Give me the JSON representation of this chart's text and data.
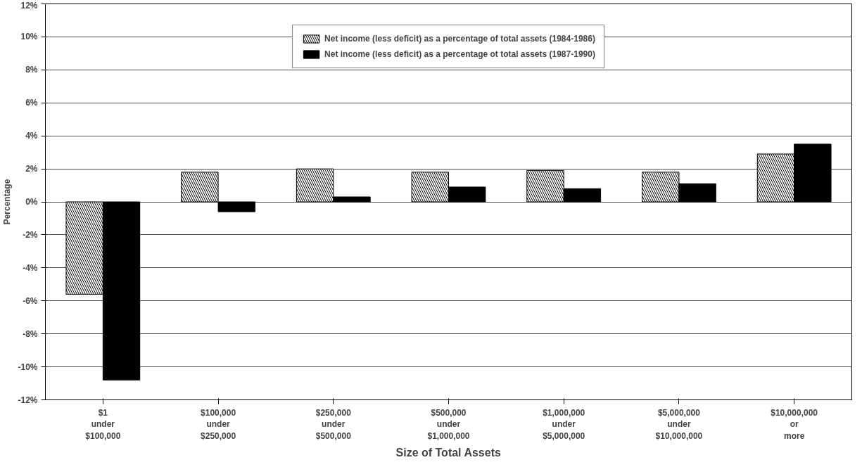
{
  "chart_data": {
    "type": "bar",
    "xlabel": "Size of Total Assets",
    "ylabel": "Percentage",
    "categories": [
      "$1\nunder\n$100,000",
      "$100,000\nunder\n$250,000",
      "$250,000\nunder\n$500,000",
      "$500,000\nunder\n$1,000,000",
      "$1,000,000\nunder\n$5,000,000",
      "$5,000,000\nunder\n$10,000,000",
      "$10,000,000\nor\nmore"
    ],
    "series": [
      {
        "name": "Net income (less deficit) as a percentage of total assets (1984-1986)",
        "color": "#ffffff",
        "values": [
          -5.6,
          1.8,
          2.0,
          1.8,
          1.9,
          1.8,
          2.9
        ]
      },
      {
        "name": "Net income (less deficit) as a percentage ot total assets (1987-1990)",
        "color": "#000000",
        "values": [
          -10.8,
          -0.6,
          0.3,
          0.9,
          0.8,
          1.1,
          3.5
        ]
      }
    ],
    "ylim": [
      -12,
      12
    ],
    "yticks": [
      {
        "value": -12,
        "label": "-12%"
      },
      {
        "value": -10,
        "label": "-10%"
      },
      {
        "value": -8,
        "label": "-8%"
      },
      {
        "value": -6,
        "label": "-6%"
      },
      {
        "value": -4,
        "label": "-4%"
      },
      {
        "value": -2,
        "label": "-2%"
      },
      {
        "value": 0,
        "label": "0%"
      },
      {
        "value": 2,
        "label": "2%"
      },
      {
        "value": 4,
        "label": "4%"
      },
      {
        "value": 6,
        "label": "6%"
      },
      {
        "value": 8,
        "label": "8%"
      },
      {
        "value": 10,
        "label": "10%"
      },
      {
        "value": 12,
        "label": "12%"
      }
    ],
    "grid": "y",
    "legend": "top"
  }
}
